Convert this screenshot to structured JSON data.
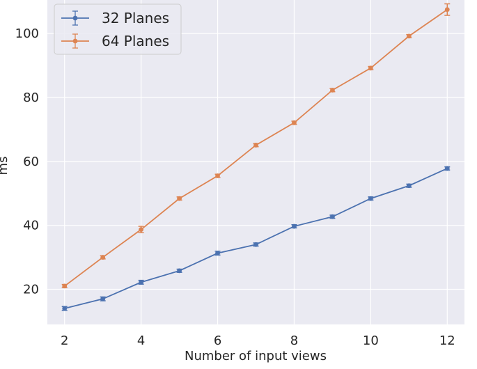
{
  "chart_data": {
    "type": "line",
    "title": "",
    "xlabel": "Number of input views",
    "ylabel": "ms",
    "x": [
      2,
      3,
      4,
      5,
      6,
      7,
      8,
      9,
      10,
      11,
      12
    ],
    "xticks": [
      2,
      4,
      6,
      8,
      10,
      12
    ],
    "yticks": [
      20,
      40,
      60,
      80,
      100
    ],
    "xlim": [
      1.55,
      12.45
    ],
    "ylim": [
      9,
      110.5
    ],
    "grid": true,
    "legend_position": "top-left",
    "series": [
      {
        "name": "32 Planes",
        "color": "#4C72B0",
        "values": [
          14.0,
          17.0,
          22.2,
          25.8,
          31.3,
          34.0,
          39.7,
          42.7,
          48.4,
          52.4,
          57.8
        ],
        "errors": [
          0.6,
          0.6,
          0.6,
          0.5,
          0.6,
          0.5,
          0.5,
          0.5,
          0.5,
          0.5,
          0.5
        ]
      },
      {
        "name": "64 Planes",
        "color": "#DD8452",
        "values": [
          21.0,
          30.0,
          38.7,
          48.4,
          55.5,
          65.1,
          72.1,
          82.3,
          89.2,
          99.2,
          107.5
        ],
        "errors": [
          0.5,
          0.5,
          1.0,
          0.5,
          0.5,
          0.5,
          0.5,
          0.5,
          0.5,
          0.5,
          1.8
        ]
      }
    ]
  }
}
